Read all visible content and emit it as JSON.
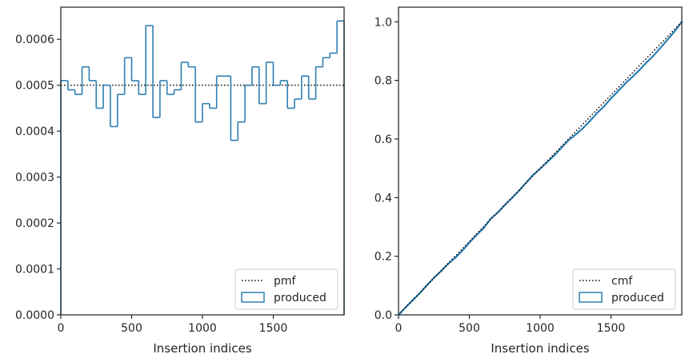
{
  "colors": {
    "produced": "#2f7fb3",
    "reference": "#000000",
    "axes": "#262626"
  },
  "chart_data": [
    {
      "type": "histogram-step",
      "xlabel": "Insertion indices",
      "ylabel": "",
      "xlim": [
        0,
        2000
      ],
      "ylim": [
        0,
        0.00067
      ],
      "xticks": [
        0,
        500,
        1000,
        1500
      ],
      "xtick_labels": [
        "0",
        "500",
        "1000",
        "1500"
      ],
      "yticks": [
        0,
        0.0001,
        0.0002,
        0.0003,
        0.0004,
        0.0005,
        0.0006
      ],
      "ytick_labels": [
        "0.0000",
        "0.0001",
        "0.0002",
        "0.0003",
        "0.0004",
        "0.0005",
        "0.0006"
      ],
      "reference_line": {
        "name": "pmf",
        "y": 0.0005
      },
      "series": [
        {
          "name": "produced",
          "bin_edges": [
            0,
            50,
            100,
            150,
            200,
            250,
            300,
            350,
            400,
            450,
            500,
            550,
            600,
            650,
            700,
            750,
            800,
            850,
            900,
            950,
            1000,
            1050,
            1100,
            1150,
            1200,
            1250,
            1300,
            1350,
            1400,
            1450,
            1500,
            1550,
            1600,
            1650,
            1700,
            1750,
            1800,
            1850,
            1900,
            1950,
            2000
          ],
          "values": [
            0.00051,
            0.00049,
            0.00048,
            0.00054,
            0.00051,
            0.00045,
            0.0005,
            0.00041,
            0.00048,
            0.00056,
            0.00051,
            0.00048,
            0.00063,
            0.00043,
            0.00051,
            0.00048,
            0.00049,
            0.00055,
            0.00054,
            0.00042,
            0.00046,
            0.00045,
            0.00052,
            0.00052,
            0.00038,
            0.00042,
            0.0005,
            0.00054,
            0.00046,
            0.00055,
            0.0005,
            0.00051,
            0.00045,
            0.00047,
            0.00052,
            0.00047,
            0.00054,
            0.00056,
            0.00057,
            0.00064
          ]
        }
      ],
      "legend": {
        "placement": "lower-right",
        "entries": [
          "pmf",
          "produced"
        ]
      }
    },
    {
      "type": "line-step",
      "xlabel": "Insertion indices",
      "ylabel": "",
      "xlim": [
        0,
        2000
      ],
      "ylim": [
        0,
        1.05
      ],
      "xticks": [
        0,
        500,
        1000,
        1500
      ],
      "xtick_labels": [
        "0",
        "500",
        "1000",
        "1500"
      ],
      "yticks": [
        0,
        0.2,
        0.4,
        0.6,
        0.8,
        1.0
      ],
      "ytick_labels": [
        "0.0",
        "0.2",
        "0.4",
        "0.6",
        "0.8",
        "1.0"
      ],
      "reference_line": {
        "name": "cmf",
        "from": [
          0,
          0
        ],
        "to": [
          2000,
          1.0
        ]
      },
      "series": [
        {
          "name": "produced",
          "x": [
            0,
            50,
            100,
            150,
            200,
            250,
            300,
            350,
            400,
            450,
            500,
            550,
            600,
            650,
            700,
            750,
            800,
            850,
            900,
            950,
            1000,
            1050,
            1100,
            1150,
            1200,
            1250,
            1300,
            1350,
            1400,
            1450,
            1500,
            1550,
            1600,
            1650,
            1700,
            1750,
            1800,
            1850,
            1900,
            1950,
            2000
          ],
          "y": [
            0,
            0.0255,
            0.05,
            0.074,
            0.101,
            0.1265,
            0.149,
            0.174,
            0.1945,
            0.2185,
            0.2465,
            0.272,
            0.296,
            0.3275,
            0.349,
            0.3745,
            0.3985,
            0.423,
            0.4505,
            0.4775,
            0.4985,
            0.5215,
            0.544,
            0.57,
            0.596,
            0.615,
            0.636,
            0.661,
            0.688,
            0.711,
            0.7385,
            0.7635,
            0.789,
            0.8115,
            0.835,
            0.861,
            0.8845,
            0.9115,
            0.9395,
            0.968,
            1.0
          ]
        }
      ],
      "legend": {
        "placement": "lower-right",
        "entries": [
          "cmf",
          "produced"
        ]
      }
    }
  ]
}
